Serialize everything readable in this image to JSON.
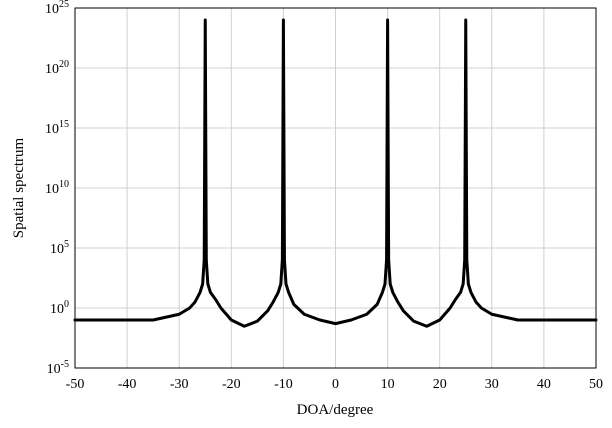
{
  "chart_data": {
    "type": "line",
    "title": "",
    "xlabel": "DOA/degree",
    "ylabel": "Spatial spectrum",
    "xlim": [
      -50,
      50
    ],
    "ylim_log10": [
      -5,
      25
    ],
    "y_scale": "log",
    "grid": true,
    "legend": "none",
    "x_ticks": [
      -50,
      -40,
      -30,
      -20,
      -10,
      0,
      10,
      20,
      30,
      40,
      50
    ],
    "x_tick_labels": [
      "-50",
      "-40",
      "-30",
      "-20",
      "-10",
      "0",
      "10",
      "20",
      "30",
      "40",
      "50"
    ],
    "y_ticks": [
      {
        "base": "10",
        "exp": "-5"
      },
      {
        "base": "10",
        "exp": "0"
      },
      {
        "base": "10",
        "exp": "5"
      },
      {
        "base": "10",
        "exp": "10"
      },
      {
        "base": "10",
        "exp": "15"
      },
      {
        "base": "10",
        "exp": "20"
      },
      {
        "base": "10",
        "exp": "25"
      }
    ],
    "series": [
      {
        "color": "#000000",
        "x": [
          -50,
          -35,
          -30,
          -28,
          -27,
          -26,
          -25.5,
          -25.2,
          -25,
          -24.8,
          -24.5,
          -24,
          -23,
          -22,
          -20,
          -17.5,
          -15,
          -13,
          -12,
          -11,
          -10.5,
          -10.2,
          -10,
          -9.8,
          -9.5,
          -9,
          -8,
          -6,
          -3,
          0,
          3,
          6,
          8,
          9,
          9.5,
          9.8,
          10,
          10.2,
          10.5,
          11,
          12,
          13,
          15,
          17.5,
          20,
          22,
          23,
          24,
          24.5,
          24.8,
          25,
          25.2,
          25.5,
          26,
          27,
          28,
          30,
          35,
          50
        ],
        "y": [
          0.1,
          0.1,
          0.3,
          1.0,
          3.0,
          20.0,
          100.0,
          10000.0,
          1e+24,
          10000.0,
          100.0,
          20.0,
          5.0,
          1.0,
          0.1,
          0.03,
          0.08,
          0.6,
          3.0,
          20.0,
          100.0,
          10000.0,
          1e+24,
          10000.0,
          100.0,
          20.0,
          2.0,
          0.3,
          0.1,
          0.05,
          0.1,
          0.3,
          2.0,
          20.0,
          100.0,
          10000.0,
          1e+24,
          10000.0,
          100.0,
          20.0,
          3.0,
          0.6,
          0.08,
          0.03,
          0.1,
          1.0,
          5.0,
          20.0,
          100.0,
          10000.0,
          1e+24,
          10000.0,
          100.0,
          20.0,
          3.0,
          1.0,
          0.3,
          0.1,
          0.1
        ]
      }
    ]
  }
}
